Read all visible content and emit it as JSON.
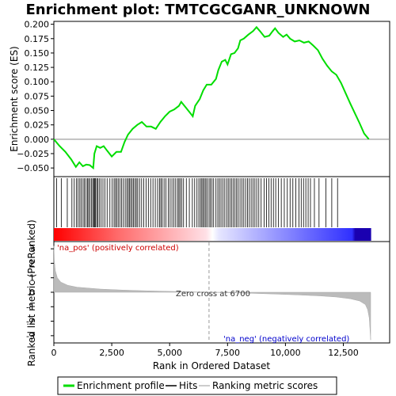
{
  "chart_data": {
    "type": "line",
    "title": "Enrichment plot: TMTCGCGANR_UNKNOWN",
    "enrichment_panel": {
      "ylabel": "Enrichment score (ES)",
      "ylim": [
        -0.065,
        0.205
      ],
      "yticks": [
        -0.05,
        -0.025,
        0.0,
        0.025,
        0.05,
        0.075,
        0.1,
        0.125,
        0.15,
        0.175,
        0.2
      ],
      "ytick_labels": [
        "−0.050",
        "−0.025",
        "0.000",
        "0.025",
        "0.050",
        "0.075",
        "0.100",
        "0.125",
        "0.150",
        "0.175",
        "0.200"
      ],
      "series_color": "#00dd00",
      "points": [
        [
          0,
          0.0
        ],
        [
          250,
          -0.012
        ],
        [
          500,
          -0.022
        ],
        [
          750,
          -0.035
        ],
        [
          950,
          -0.048
        ],
        [
          1100,
          -0.04
        ],
        [
          1250,
          -0.047
        ],
        [
          1400,
          -0.044
        ],
        [
          1550,
          -0.045
        ],
        [
          1700,
          -0.05
        ],
        [
          1750,
          -0.025
        ],
        [
          1850,
          -0.012
        ],
        [
          2000,
          -0.015
        ],
        [
          2150,
          -0.012
        ],
        [
          2300,
          -0.02
        ],
        [
          2500,
          -0.03
        ],
        [
          2700,
          -0.022
        ],
        [
          2900,
          -0.022
        ],
        [
          3050,
          -0.005
        ],
        [
          3200,
          0.008
        ],
        [
          3400,
          0.018
        ],
        [
          3600,
          0.025
        ],
        [
          3800,
          0.03
        ],
        [
          4000,
          0.022
        ],
        [
          4200,
          0.022
        ],
        [
          4400,
          0.018
        ],
        [
          4600,
          0.03
        ],
        [
          4800,
          0.04
        ],
        [
          5000,
          0.048
        ],
        [
          5200,
          0.052
        ],
        [
          5400,
          0.058
        ],
        [
          5500,
          0.065
        ],
        [
          5700,
          0.055
        ],
        [
          5900,
          0.045
        ],
        [
          6000,
          0.04
        ],
        [
          6100,
          0.058
        ],
        [
          6300,
          0.07
        ],
        [
          6450,
          0.085
        ],
        [
          6600,
          0.095
        ],
        [
          6800,
          0.095
        ],
        [
          7000,
          0.105
        ],
        [
          7100,
          0.12
        ],
        [
          7250,
          0.135
        ],
        [
          7400,
          0.138
        ],
        [
          7500,
          0.13
        ],
        [
          7650,
          0.148
        ],
        [
          7800,
          0.15
        ],
        [
          7950,
          0.158
        ],
        [
          8050,
          0.172
        ],
        [
          8200,
          0.175
        ],
        [
          8400,
          0.182
        ],
        [
          8600,
          0.188
        ],
        [
          8750,
          0.195
        ],
        [
          8900,
          0.188
        ],
        [
          9100,
          0.178
        ],
        [
          9300,
          0.18
        ],
        [
          9450,
          0.188
        ],
        [
          9550,
          0.193
        ],
        [
          9700,
          0.185
        ],
        [
          9900,
          0.178
        ],
        [
          10050,
          0.182
        ],
        [
          10200,
          0.175
        ],
        [
          10400,
          0.17
        ],
        [
          10600,
          0.172
        ],
        [
          10800,
          0.168
        ],
        [
          11000,
          0.17
        ],
        [
          11200,
          0.163
        ],
        [
          11400,
          0.155
        ],
        [
          11600,
          0.14
        ],
        [
          11800,
          0.128
        ],
        [
          12000,
          0.118
        ],
        [
          12200,
          0.112
        ],
        [
          12400,
          0.098
        ],
        [
          12600,
          0.08
        ],
        [
          12800,
          0.062
        ],
        [
          13000,
          0.045
        ],
        [
          13200,
          0.028
        ],
        [
          13400,
          0.01
        ],
        [
          13600,
          0.0
        ]
      ]
    },
    "hits_panel": {
      "hit_ranks": [
        120,
        320,
        580,
        780,
        880,
        970,
        1040,
        1120,
        1180,
        1260,
        1320,
        1390,
        1450,
        1500,
        1560,
        1620,
        1680,
        1720,
        1760,
        1800,
        1850,
        1900,
        1960,
        2040,
        2120,
        2200,
        2300,
        2420,
        2520,
        2600,
        2660,
        2720,
        2780,
        2850,
        2920,
        3000,
        3080,
        3150,
        3210,
        3260,
        3320,
        3380,
        3440,
        3500,
        3560,
        3620,
        3700,
        3790,
        3880,
        3980,
        4080,
        4180,
        4280,
        4380,
        4480,
        4560,
        4620,
        4680,
        4760,
        4840,
        4940,
        5020,
        5100,
        5180,
        5260,
        5340,
        5400,
        5450,
        5520,
        5600,
        5720,
        5850,
        5980,
        6080,
        6180,
        6260,
        6330,
        6390,
        6440,
        6500,
        6560,
        6620,
        6700,
        6760,
        6830,
        6900,
        7000,
        7080,
        7150,
        7220,
        7300,
        7380,
        7460,
        7530,
        7600,
        7670,
        7740,
        7820,
        7890,
        7960,
        8040,
        8120,
        8200,
        8280,
        8360,
        8440,
        8520,
        8600,
        8680,
        8760,
        8850,
        8950,
        9080,
        9180,
        9280,
        9380,
        9480,
        9580,
        9700,
        9820,
        9950,
        10080,
        10200,
        10320,
        10450,
        10580,
        10680,
        10780,
        10880,
        10980,
        11080,
        11250,
        11450,
        11750,
        12000,
        12250
      ]
    },
    "ranked_metric_panel": {
      "ylabel": "Ranked list metric (PreRanked)",
      "ylim": [
        -3.5,
        3.5
      ],
      "yticks": [
        -3,
        -2,
        -1,
        0,
        1,
        2,
        3
      ],
      "ytick_labels": [
        "-3",
        "-2",
        "-1",
        "0",
        "1",
        "2",
        "3"
      ],
      "fill_color": "#bbbbbb",
      "points": [
        [
          0,
          3.2
        ],
        [
          20,
          2.2
        ],
        [
          60,
          1.5
        ],
        [
          150,
          1.0
        ],
        [
          300,
          0.7
        ],
        [
          600,
          0.48
        ],
        [
          1000,
          0.35
        ],
        [
          2000,
          0.22
        ],
        [
          3000,
          0.15
        ],
        [
          4000,
          0.1
        ],
        [
          5000,
          0.06
        ],
        [
          6000,
          0.03
        ],
        [
          6700,
          0.0
        ],
        [
          7500,
          -0.03
        ],
        [
          8500,
          -0.07
        ],
        [
          9500,
          -0.12
        ],
        [
          10500,
          -0.18
        ],
        [
          11500,
          -0.25
        ],
        [
          12200,
          -0.33
        ],
        [
          12800,
          -0.45
        ],
        [
          13200,
          -0.6
        ],
        [
          13450,
          -0.85
        ],
        [
          13550,
          -1.2
        ],
        [
          13620,
          -1.8
        ],
        [
          13680,
          -3.3
        ]
      ],
      "zero_cross_rank": 6700,
      "zero_cross_label": "Zero cross at 6700",
      "pos_label": "'na_pos' (positively correlated)",
      "neg_label": "'na_neg' (negatively correlated)"
    },
    "x_axis": {
      "xlabel": "Rank in Ordered Dataset",
      "xlim": [
        0,
        14500
      ],
      "xticks": [
        0,
        2500,
        5000,
        7500,
        10000,
        12500
      ],
      "xtick_labels": [
        "0",
        "2,500",
        "5,000",
        "7,500",
        "10,000",
        "12,500"
      ],
      "total_ranks": 13700
    },
    "legend": {
      "placement": "bottom",
      "entries": [
        {
          "label": "Enrichment profile",
          "color": "#00dd00",
          "kind": "line"
        },
        {
          "label": "Hits",
          "color": "#000000",
          "kind": "line"
        },
        {
          "label": "Ranking metric scores",
          "color": "#bbbbbb",
          "kind": "line"
        }
      ]
    },
    "colors": {
      "pos_label": "#cc0000",
      "neg_label": "#0000cc",
      "zero_cross_label": "#333333",
      "zero_line": "#888888",
      "gradient_pos": "#ff0000",
      "gradient_mid": "#ffffff",
      "gradient_neg": "#0000ff"
    }
  }
}
